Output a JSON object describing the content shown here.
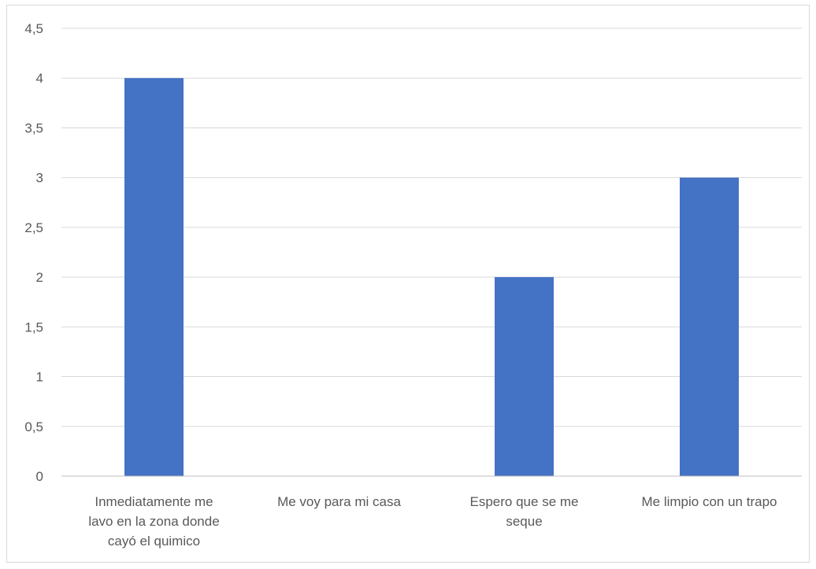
{
  "chart_data": {
    "type": "bar",
    "title": "",
    "xlabel": "",
    "ylabel": "",
    "categories": [
      [
        "Inmediatamente me",
        "lavo en la zona donde",
        "cayó el quimico"
      ],
      [
        "Me voy para mi casa"
      ],
      [
        "Espero que se me",
        "seque"
      ],
      [
        "Me limpio con un trapo"
      ]
    ],
    "values": [
      4,
      0,
      2,
      3
    ],
    "ylim": [
      0,
      4.5
    ],
    "yticks": [
      "0",
      "0,5",
      "1",
      "1,5",
      "2",
      "2,5",
      "3",
      "3,5",
      "4",
      "4,5"
    ],
    "grid": true,
    "legend": "none",
    "bar_color": "#4472C4",
    "grid_color": "#d9d9d9",
    "axis_color": "#bfbfbf",
    "text_color": "#595959"
  }
}
